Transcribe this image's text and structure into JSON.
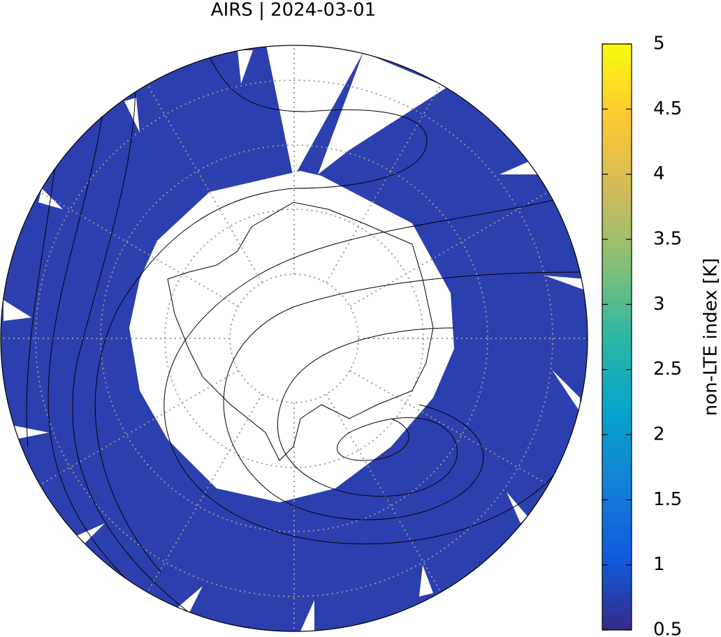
{
  "title": "AIRS | 2024-03-01",
  "colorbar": {
    "label": "non-LTE index [K]",
    "lim": [
      0.5,
      5
    ],
    "ticks": [
      0.5,
      1,
      1.5,
      2,
      2.5,
      3,
      3.5,
      4,
      4.5,
      5
    ],
    "colors": [
      "#352a87",
      "#0f5cdd",
      "#1481d6",
      "#06a4ca",
      "#2eb7a4",
      "#87bf77",
      "#d1bb59",
      "#fec832",
      "#f9fb0e"
    ]
  }
}
